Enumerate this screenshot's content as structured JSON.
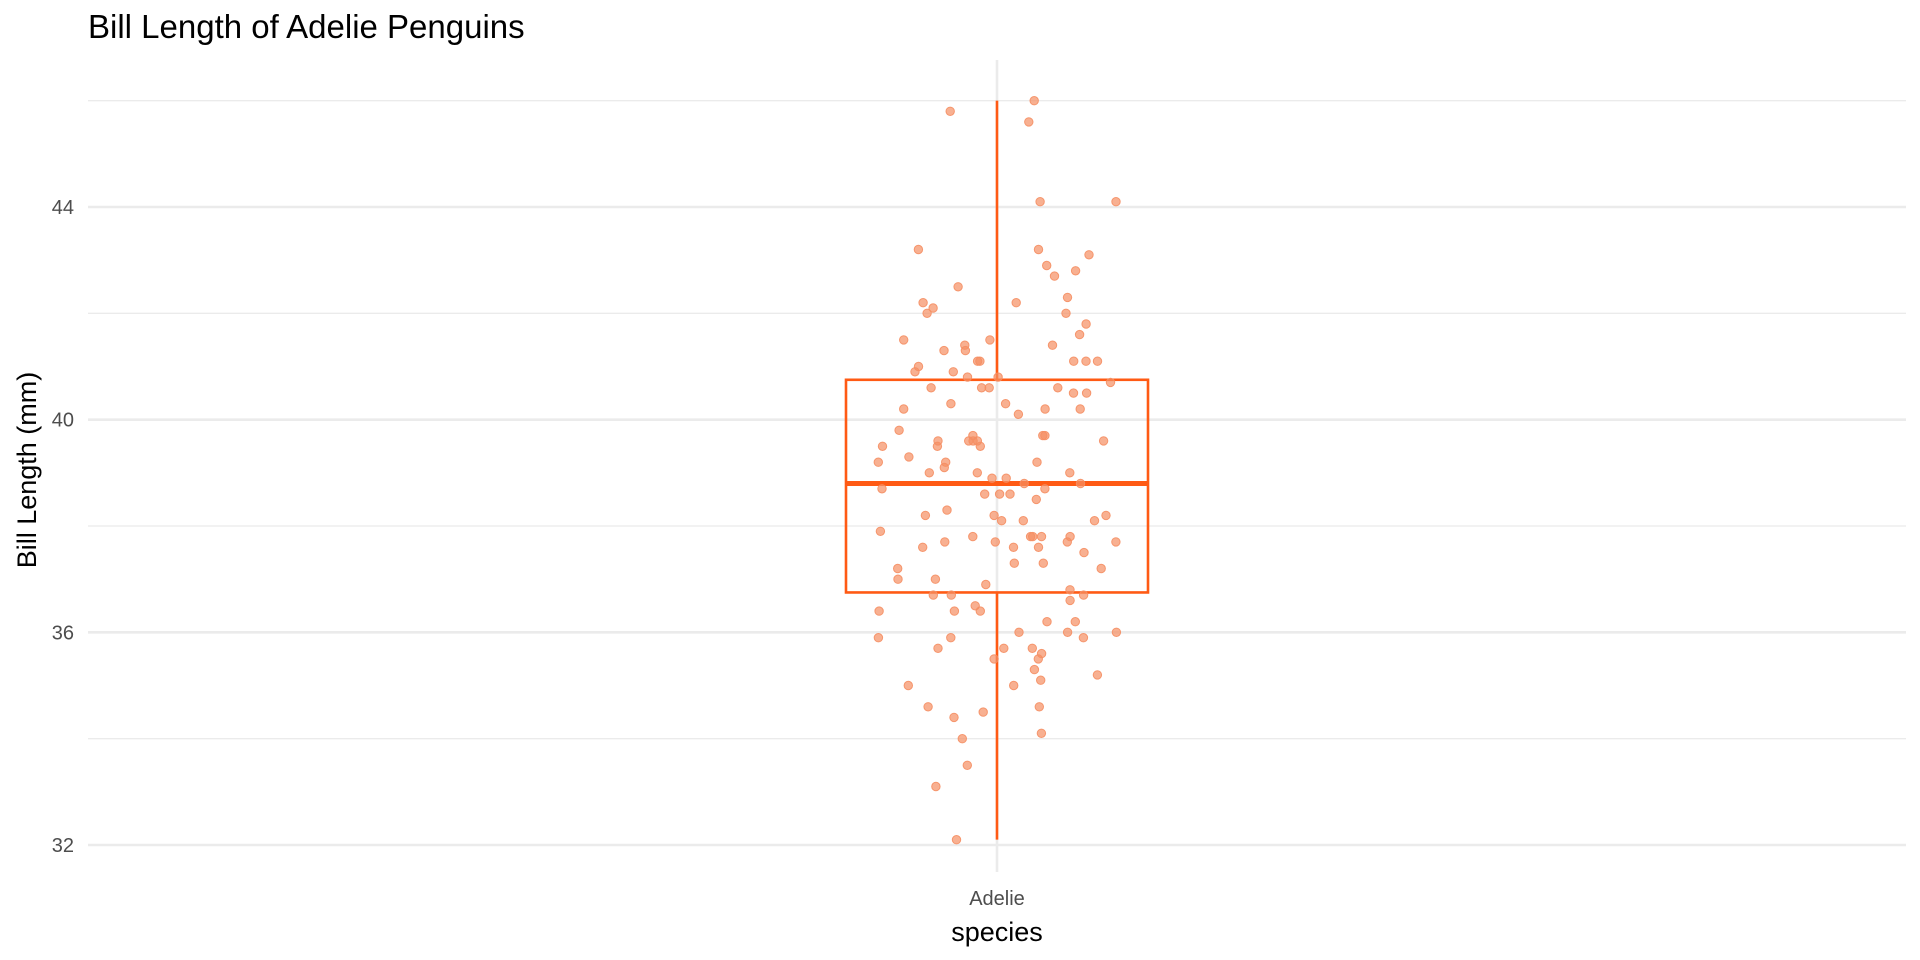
{
  "chart_data": {
    "type": "box",
    "title": "Bill Length of Adelie Penguins",
    "xlabel": "species",
    "ylabel": "Bill Length (mm)",
    "categories": [
      "Adelie"
    ],
    "y_ticks": [
      32,
      36,
      40,
      44
    ],
    "ylim": [
      31.4,
      46.6
    ],
    "grid": true,
    "box": {
      "category": "Adelie",
      "min": 32.1,
      "q1": 36.75,
      "median": 38.8,
      "q3": 40.75,
      "max": 46.0
    },
    "points": [
      46.0,
      45.8,
      45.6,
      44.1,
      44.1,
      43.2,
      43.2,
      43.1,
      42.9,
      42.8,
      42.7,
      42.5,
      42.3,
      42.2,
      42.2,
      42.1,
      42.0,
      42.0,
      41.8,
      41.6,
      41.5,
      41.5,
      41.4,
      41.4,
      41.3,
      41.3,
      41.1,
      41.1,
      41.1,
      41.1,
      41.1,
      41.0,
      40.9,
      40.9,
      40.8,
      40.8,
      40.7,
      40.6,
      40.6,
      40.6,
      40.6,
      40.5,
      40.5,
      40.3,
      40.3,
      40.2,
      40.2,
      40.2,
      40.1,
      39.8,
      39.7,
      39.7,
      39.7,
      39.6,
      39.6,
      39.6,
      39.6,
      39.6,
      39.5,
      39.5,
      39.5,
      39.3,
      39.2,
      39.2,
      39.2,
      39.1,
      39.0,
      39.0,
      39.0,
      38.9,
      38.9,
      38.8,
      38.8,
      38.7,
      38.7,
      38.6,
      38.6,
      38.6,
      38.5,
      38.3,
      38.2,
      38.2,
      38.2,
      38.1,
      38.1,
      38.1,
      37.9,
      37.8,
      37.8,
      37.8,
      37.8,
      37.8,
      37.7,
      37.7,
      37.7,
      37.7,
      37.6,
      37.6,
      37.6,
      37.5,
      37.3,
      37.3,
      37.2,
      37.2,
      37.0,
      37.0,
      36.9,
      36.8,
      36.7,
      36.7,
      36.7,
      36.6,
      36.5,
      36.4,
      36.4,
      36.4,
      36.2,
      36.2,
      36.0,
      36.0,
      36.0,
      35.9,
      35.9,
      35.9,
      35.7,
      35.7,
      35.7,
      35.6,
      35.5,
      35.5,
      35.3,
      35.2,
      35.1,
      35.0,
      35.0,
      34.6,
      34.6,
      34.5,
      34.4,
      34.1,
      34.0,
      33.5,
      33.1,
      32.1
    ],
    "colors": {
      "box": "#FF5A14",
      "points": "#F58E63",
      "grid": "#EBEBEB",
      "background": "#FFFFFF"
    }
  }
}
